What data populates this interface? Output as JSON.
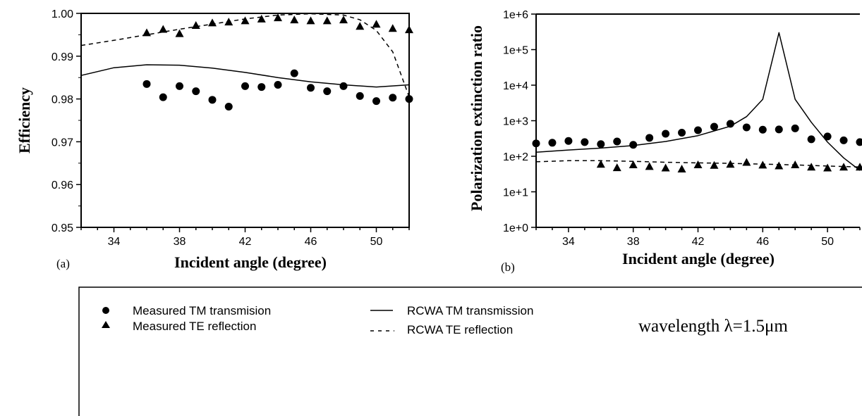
{
  "legend": {
    "measured_tm": "Measured TM transmision",
    "measured_te": "Measured TE reflection",
    "rcwa_tm": "RCWA TM transmission",
    "rcwa_te": "RCWA TE reflection",
    "note": "wavelength λ=1.5μm"
  },
  "chart_data": [
    {
      "panel_label": "(a)",
      "type": "scatter",
      "xlabel": "Incident angle (degree)",
      "ylabel": "Efficiency",
      "xlim": [
        32,
        52
      ],
      "ylim": [
        0.95,
        1.0
      ],
      "y_scale": "linear",
      "xticks": [
        34,
        38,
        42,
        46,
        50
      ],
      "yticks": [
        0.95,
        0.96,
        0.97,
        0.98,
        0.99,
        1.0
      ],
      "ytick_labels": [
        "0.95",
        "0.96",
        "0.97",
        "0.98",
        "0.99",
        "1.00"
      ],
      "series": [
        {
          "name": "Measured TM transmision",
          "kind": "points",
          "marker": "circle",
          "x": [
            36,
            37,
            38,
            39,
            40,
            41,
            42,
            43,
            44,
            45,
            46,
            47,
            48,
            49,
            50,
            51,
            52
          ],
          "y": [
            0.9835,
            0.9804,
            0.983,
            0.9818,
            0.9798,
            0.9782,
            0.983,
            0.9828,
            0.9833,
            0.986,
            0.9826,
            0.9818,
            0.983,
            0.9807,
            0.9795,
            0.9803,
            0.98
          ]
        },
        {
          "name": "Measured TE reflection",
          "kind": "points",
          "marker": "triangle",
          "x": [
            36,
            37,
            38,
            39,
            40,
            41,
            42,
            43,
            44,
            45,
            46,
            47,
            48,
            49,
            50,
            51,
            52
          ],
          "y": [
            0.9955,
            0.9963,
            0.9953,
            0.9972,
            0.9978,
            0.998,
            0.9983,
            0.9987,
            0.999,
            0.9985,
            0.9983,
            0.9983,
            0.9985,
            0.997,
            0.9975,
            0.9965,
            0.9962
          ]
        },
        {
          "name": "RCWA TM transmission",
          "kind": "line",
          "dash": "solid",
          "x": [
            32,
            34,
            36,
            38,
            40,
            42,
            44,
            46,
            48,
            50,
            52
          ],
          "y": [
            0.9855,
            0.9873,
            0.988,
            0.9879,
            0.9872,
            0.9862,
            0.985,
            0.984,
            0.9833,
            0.9828,
            0.9833
          ]
        },
        {
          "name": "RCWA TE reflection",
          "kind": "line",
          "dash": "dashed",
          "x": [
            32,
            34,
            36,
            38,
            40,
            42,
            44,
            46,
            48,
            49,
            50,
            51,
            52
          ],
          "y": [
            0.9925,
            0.9937,
            0.995,
            0.9963,
            0.9975,
            0.9987,
            0.9996,
            0.9999,
            0.9996,
            0.9985,
            0.996,
            0.991,
            0.9805
          ]
        }
      ]
    },
    {
      "panel_label": "(b)",
      "type": "scatter",
      "xlabel": "Incident angle (degree)",
      "ylabel": "Polarization extinction ratio",
      "xlim": [
        32,
        52
      ],
      "ylim": [
        1,
        1000000
      ],
      "y_scale": "log",
      "xticks": [
        34,
        38,
        42,
        46,
        50
      ],
      "yticks": [
        1,
        10,
        100,
        1000,
        10000,
        100000,
        1000000
      ],
      "ytick_labels": [
        "1e+0",
        "1e+1",
        "1e+2",
        "1e+3",
        "1e+4",
        "1e+5",
        "1e+6"
      ],
      "series": [
        {
          "name": "Measured TM transmision",
          "kind": "points",
          "marker": "circle",
          "x": [
            32,
            33,
            34,
            35,
            36,
            37,
            38,
            39,
            40,
            41,
            42,
            43,
            44,
            45,
            46,
            47,
            48,
            49,
            50,
            51,
            52
          ],
          "y": [
            230,
            240,
            270,
            250,
            220,
            260,
            210,
            330,
            430,
            460,
            540,
            680,
            820,
            650,
            560,
            570,
            610,
            300,
            360,
            280,
            250
          ]
        },
        {
          "name": "Measured TE reflection",
          "kind": "points",
          "marker": "triangle",
          "x": [
            36,
            37,
            38,
            39,
            40,
            41,
            42,
            43,
            44,
            45,
            46,
            47,
            48,
            49,
            50,
            51,
            52
          ],
          "y": [
            60,
            48,
            58,
            52,
            47,
            44,
            58,
            56,
            60,
            68,
            57,
            54,
            58,
            50,
            47,
            50,
            50
          ]
        },
        {
          "name": "RCWA TM transmission",
          "kind": "line",
          "dash": "solid",
          "x": [
            32,
            34,
            36,
            38,
            40,
            42,
            44,
            45,
            46,
            47,
            48,
            49,
            50,
            51,
            52
          ],
          "y": [
            130,
            150,
            170,
            200,
            260,
            380,
            700,
            1300,
            4000,
            300000,
            4000,
            900,
            250,
            90,
            40
          ]
        },
        {
          "name": "RCWA TE reflection",
          "kind": "line",
          "dash": "dashed",
          "x": [
            32,
            34,
            36,
            38,
            40,
            42,
            44,
            46,
            48,
            50,
            52
          ],
          "y": [
            70,
            75,
            75,
            72,
            68,
            65,
            63,
            60,
            57,
            53,
            50
          ]
        }
      ]
    }
  ]
}
